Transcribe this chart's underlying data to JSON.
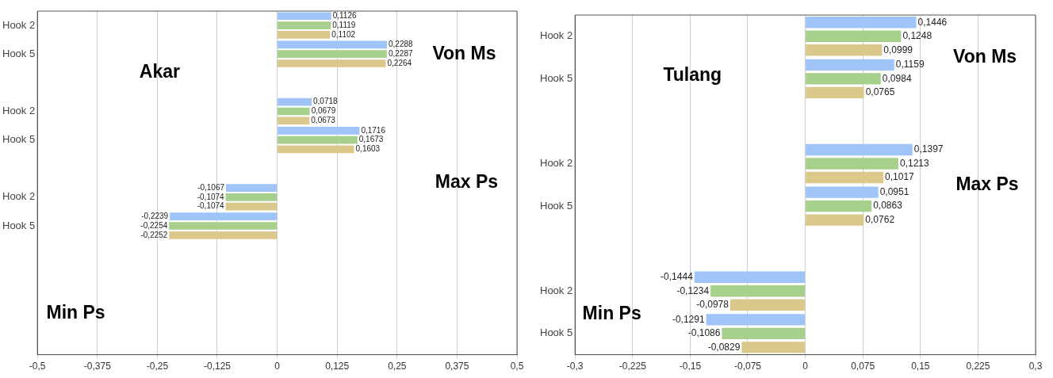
{
  "chart_data": [
    {
      "type": "bar",
      "orientation": "horizontal",
      "title": "Akar",
      "annotations": [
        "Von Ms",
        "Max Ps",
        "Min Ps"
      ],
      "categories": [
        "Hook 2",
        "Hook 5",
        null,
        "Hook 2",
        "Hook 5",
        null,
        "Hook 2",
        "Hook 5",
        null,
        null,
        null,
        null
      ],
      "series": [
        {
          "color": "#9fc5f8",
          "values": [
            0.1126,
            0.2288,
            null,
            0.0718,
            0.1716,
            null,
            -0.1067,
            -0.2239,
            null,
            null,
            null,
            null
          ],
          "value_labels": [
            "0,1126",
            "0,2288",
            null,
            "0,0718",
            "0,1716",
            null,
            "-0,1067",
            "-0,2239",
            null,
            null,
            null,
            null
          ]
        },
        {
          "color": "#a8d08d",
          "values": [
            0.1119,
            0.2287,
            null,
            0.0679,
            0.1673,
            null,
            -0.1074,
            -0.2254,
            null,
            null,
            null,
            null
          ],
          "value_labels": [
            "0,1119",
            "0,2287",
            null,
            "0,0679",
            "0,1673",
            null,
            "-0,1074",
            "-0,2254",
            null,
            null,
            null,
            null
          ]
        },
        {
          "color": "#dbc98c",
          "values": [
            0.1102,
            0.2264,
            null,
            0.0673,
            0.1603,
            null,
            -0.1074,
            -0.2252,
            null,
            null,
            null,
            null
          ],
          "value_labels": [
            "0,1102",
            "0,2264",
            null,
            "0,0673",
            "0,1603",
            null,
            "-0,1074",
            "-0,2252",
            null,
            null,
            null,
            null
          ]
        }
      ],
      "xlim": [
        -0.5,
        0.5
      ],
      "xticks": [
        {
          "value": -0.5,
          "label": "-0,5"
        },
        {
          "value": -0.375,
          "label": "-0,375"
        },
        {
          "value": -0.25,
          "label": "-0,25"
        },
        {
          "value": -0.125,
          "label": "-0,125"
        },
        0,
        {
          "value": 0.125,
          "label": "0,125"
        },
        {
          "value": 0.25,
          "label": "0,25"
        },
        {
          "value": 0.375,
          "label": "0,375"
        },
        {
          "value": 0.5,
          "label": "0,5"
        }
      ],
      "grid": "x",
      "legend": false
    },
    {
      "type": "bar",
      "orientation": "horizontal",
      "title": "Tulang",
      "annotations": [
        "Von Ms",
        "Max Ps",
        "Min Ps"
      ],
      "categories": [
        "Hook 2",
        "Hook 5",
        null,
        "Hook 2",
        "Hook 5",
        null,
        "Hook 2",
        "Hook 5"
      ],
      "series": [
        {
          "color": "#9fc5f8",
          "values": [
            0.1446,
            0.1159,
            null,
            0.1397,
            0.0951,
            null,
            -0.1444,
            -0.1291
          ],
          "value_labels": [
            "0,1446",
            "0,1159",
            null,
            "0,1397",
            "0,0951",
            null,
            "-0,1444",
            "-0,1291"
          ]
        },
        {
          "color": "#a8d08d",
          "values": [
            0.1248,
            0.0984,
            null,
            0.1213,
            0.0863,
            null,
            -0.1234,
            -0.1086
          ],
          "value_labels": [
            "0,1248",
            "0,0984",
            null,
            "0,1213",
            "0,0863",
            null,
            "-0,1234",
            "-0,1086"
          ]
        },
        {
          "color": "#dbc98c",
          "values": [
            0.0999,
            0.0765,
            null,
            0.1017,
            0.0762,
            null,
            -0.0978,
            -0.0829
          ],
          "value_labels": [
            "0,0999",
            "0,0765",
            null,
            "0,1017",
            "0,0762",
            null,
            "-0,0978",
            "-0,0829"
          ]
        }
      ],
      "xlim": [
        -0.3,
        0.3
      ],
      "xticks": [
        {
          "value": -0.3,
          "label": "-0,3"
        },
        {
          "value": -0.225,
          "label": "-0,225"
        },
        {
          "value": -0.15,
          "label": "-0,15"
        },
        {
          "value": -0.075,
          "label": "-0,075"
        },
        0,
        {
          "value": 0.075,
          "label": "0,075"
        },
        {
          "value": 0.15,
          "label": "0,15"
        },
        {
          "value": 0.225,
          "label": "0,225"
        },
        {
          "value": 0.3,
          "label": "0,3"
        }
      ],
      "grid": "x",
      "legend": false
    }
  ]
}
